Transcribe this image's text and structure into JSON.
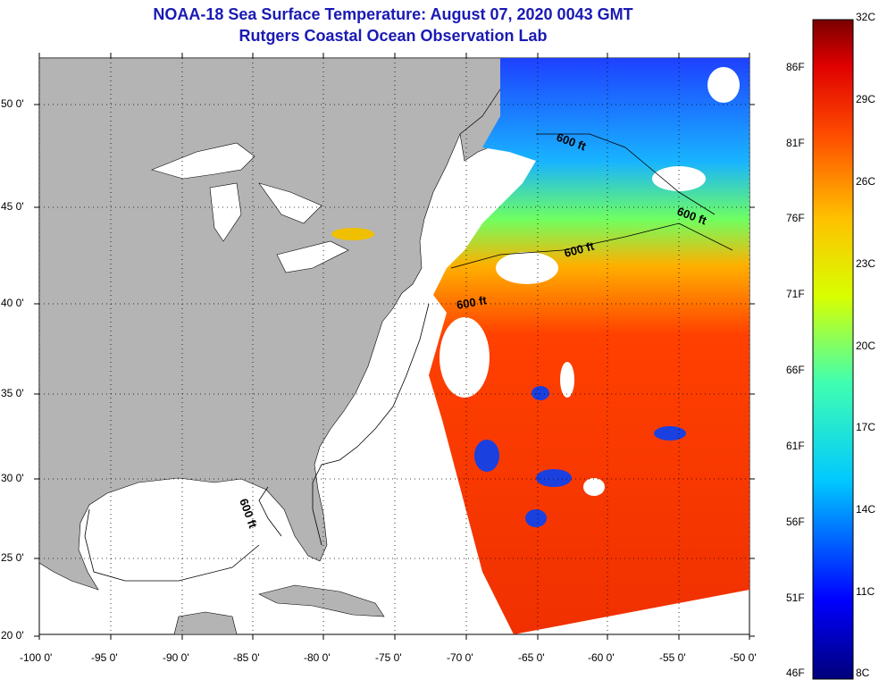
{
  "header": {
    "title": "NOAA-18 Sea Surface Temperature:  August 07, 2020 0043 GMT",
    "subtitle": "Rutgers Coastal Ocean Observation Lab"
  },
  "axes": {
    "lat_labels": [
      "50 0'",
      "45 0'",
      "40 0'",
      "35 0'",
      "30 0'",
      "25 0'",
      "20 0'"
    ],
    "lon_labels": [
      "-100 0'",
      "-95 0'",
      "-90 0'",
      "-85 0'",
      "-80 0'",
      "-75 0'",
      "-70 0'",
      "-65 0'",
      "-60 0'",
      "-55 0'",
      "-50 0'"
    ]
  },
  "contours": {
    "label": "600 ft"
  },
  "colorbar": {
    "celsius": [
      "32C",
      "29C",
      "26C",
      "23C",
      "20C",
      "17C",
      "14C",
      "11C",
      "8C"
    ],
    "fahrenheit": [
      "86F",
      "81F",
      "76F",
      "71F",
      "66F",
      "61F",
      "56F",
      "51F",
      "46F"
    ]
  },
  "colors": {
    "land": "#b4b4b4",
    "ocean_nodata": "#ffffff",
    "title": "#1a1ab4"
  }
}
